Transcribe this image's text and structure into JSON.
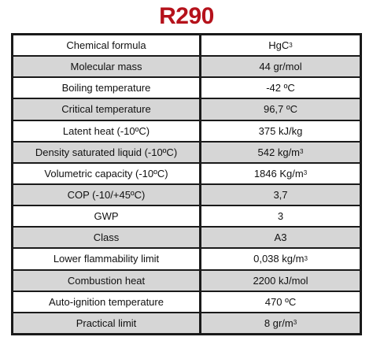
{
  "title": "R290",
  "colors": {
    "title": "#b5121b",
    "row_odd": "#ffffff",
    "row_even": "#d6d6d6",
    "border": "#1a1a1a"
  },
  "rows": [
    {
      "property": "Chemical formula",
      "value": "HgC",
      "value_sub": "3"
    },
    {
      "property": "Molecular mass",
      "value": "44 gr/mol"
    },
    {
      "property": "Boiling temperature",
      "value": "-42 ºC"
    },
    {
      "property": "Critical temperature",
      "value": "96,7 ºC"
    },
    {
      "property": "Latent heat (-10ºC)",
      "value": "375 kJ/kg"
    },
    {
      "property": "Density saturated liquid (-10ºC)",
      "value": "542 kg/m",
      "value_sup": "3"
    },
    {
      "property": "Volumetric capacity (-10ºC)",
      "value": "1846 Kg/m",
      "value_sup": "3"
    },
    {
      "property": "COP (-10/+45ºC)",
      "value": "3,7"
    },
    {
      "property": "GWP",
      "value": "3"
    },
    {
      "property": "Class",
      "value": "A3"
    },
    {
      "property": "Lower flammability limit",
      "value": "0,038 kg/m",
      "value_sup": "3"
    },
    {
      "property": "Combustion heat",
      "value": "2200 kJ/mol"
    },
    {
      "property": "Auto-ignition temperature",
      "value": "470 ºC"
    },
    {
      "property": "Practical limit",
      "value": "8 gr/m",
      "value_sup": "3"
    }
  ]
}
